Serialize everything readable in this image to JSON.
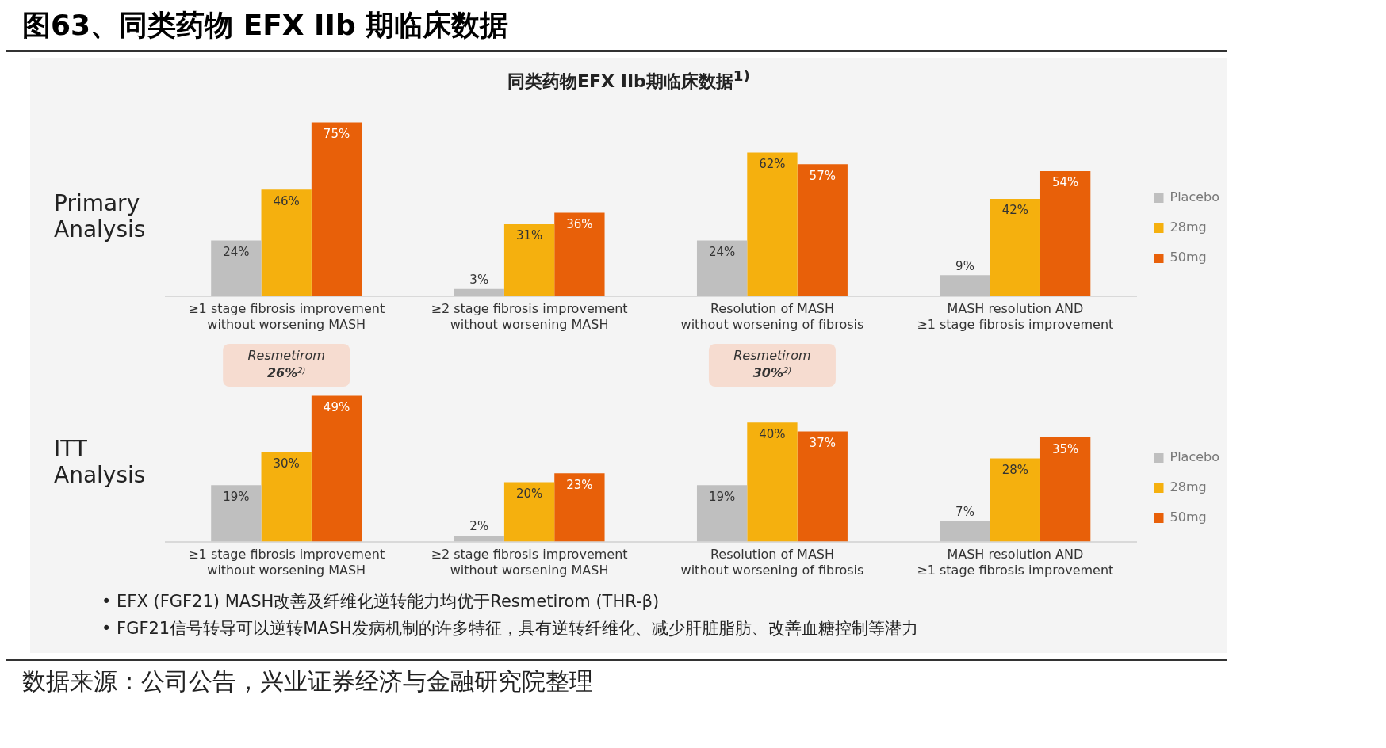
{
  "chart_data": [
    {
      "type": "bar",
      "title": "图63、同类药物 EFX IIb 期临床数据",
      "subtitle": "同类药物EFX IIb期临床数据$^{1)}$",
      "ylabel": "Primary Analysis",
      "categories": [
        "≥1 stage fibrosis improvement\nwithout worsening MASH",
        "≥2 stage fibrosis improvement\nwithout worsening MASH",
        "Resolution of MASH\nwithout worsening of fibrosis",
        "MASH resolution AND\n≥1 stage fibrosis improvement"
      ],
      "series": [
        {
          "name": "Placebo",
          "color": "#bfbfbf",
          "values": [
            24,
            3,
            24,
            9
          ],
          "value_labels": [
            "24%",
            "3%",
            "24%",
            "9%"
          ]
        },
        {
          "name": "28mg",
          "color": "#f5b00e",
          "values": [
            46,
            31,
            62,
            42
          ],
          "value_labels": [
            "46%",
            "31%",
            "62%",
            "42%"
          ]
        },
        {
          "name": "50mg",
          "color": "#e86009",
          "values": [
            75,
            36,
            57,
            54
          ],
          "value_labels": [
            "75%",
            "36%",
            "57%",
            "54%"
          ]
        }
      ],
      "legend": "right",
      "grid": false,
      "annotations": [
        "• EFX (FGF21) MASH改善及纤维化逆转能力均优于Resmetirom (THR-β)",
        "• FGF21信号转导可以逆转MASH发病机制的许多特征，具有逆转纤维化、减少肝脏脂肪、改善血糖控制等潜力",
        "数据来源：公司公告，兴业证券经济与金融研究院整理"
      ]
    },
    {
      "type": "bar",
      "ylabel": "ITT Analysis",
      "categories": [
        "≥1 stage fibrosis improvement\nwithout worsening MASH",
        "≥2 stage fibrosis improvement\nwithout worsening MASH",
        "Resolution of MASH\nwithout worsening of fibrosis",
        "MASH resolution AND\n≥1 stage fibrosis improvement"
      ],
      "series": [
        {
          "name": "Placebo",
          "color": "#bfbfbf",
          "values": [
            19,
            2,
            19,
            7
          ],
          "value_labels": [
            "19%",
            "2%",
            "19%",
            "7%"
          ]
        },
        {
          "name": "28mg",
          "color": "#f5b00e",
          "values": [
            30,
            20,
            40,
            28
          ],
          "value_labels": [
            "30%",
            "20%",
            "40%",
            "28%"
          ]
        },
        {
          "name": "50mg",
          "color": "#e86009",
          "values": [
            49,
            23,
            37,
            35
          ],
          "value_labels": [
            "49%",
            "23%",
            "37%",
            "35%"
          ]
        }
      ],
      "legend": "right",
      "grid": false,
      "annotations": [
        "Resmetirom 26%$^{2)}$",
        "Resmetirom 30%$^{2)}$"
      ]
    }
  ]
}
